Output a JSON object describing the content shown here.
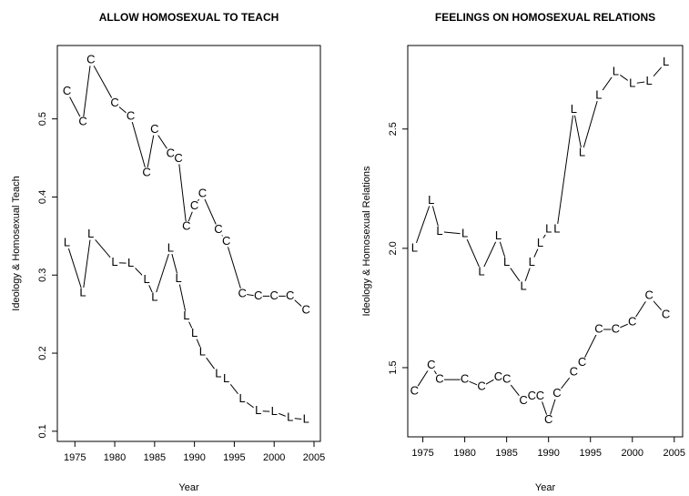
{
  "chart_data": [
    {
      "type": "line",
      "title": "ALLOW HOMOSEXUAL TO TEACH",
      "x_label": "Year",
      "y_label": "Ideology & Homosexual Teach",
      "x": [
        1974,
        1976,
        1977,
        1980,
        1982,
        1984,
        1985,
        1987,
        1988,
        1989,
        1990,
        1991,
        1993,
        1994,
        1996,
        1998,
        2000,
        2002,
        2004
      ],
      "series": [
        {
          "name": "C",
          "color": "#000000",
          "values": [
            0.535,
            0.496,
            0.575,
            0.52,
            0.503,
            0.431,
            0.486,
            0.455,
            0.449,
            0.362,
            0.388,
            0.404,
            0.358,
            0.343,
            0.276,
            0.273,
            0.273,
            0.273,
            0.255
          ]
        },
        {
          "name": "L",
          "color": "#000000",
          "values": [
            0.341,
            0.277,
            0.352,
            0.316,
            0.315,
            0.294,
            0.271,
            0.334,
            0.295,
            0.247,
            0.225,
            0.201,
            0.173,
            0.167,
            0.141,
            0.126,
            0.125,
            0.117,
            0.115
          ]
        }
      ],
      "xlim": [
        1972.8,
        2005.8
      ],
      "xticks": [
        1975,
        1980,
        1985,
        1990,
        1995,
        2000,
        2005
      ],
      "ylim": [
        0.087,
        0.594
      ],
      "yticks": [
        0.1,
        0.2,
        0.3,
        0.4,
        0.5
      ]
    },
    {
      "type": "line",
      "title": "FEELINGS ON HOMOSEXUAL RELATIONS",
      "x_label": "Year",
      "y_label": "Ideology & Homosexual Relations",
      "x": [
        1974,
        1976,
        1977,
        1980,
        1982,
        1984,
        1985,
        1987,
        1988,
        1989,
        1990,
        1991,
        1993,
        1994,
        1996,
        1998,
        2000,
        2002,
        2004
      ],
      "series": [
        {
          "name": "L",
          "color": "#000000",
          "values": [
            2.0,
            2.2,
            2.07,
            2.06,
            1.9,
            2.05,
            1.94,
            1.84,
            1.94,
            2.02,
            2.08,
            2.08,
            2.58,
            2.4,
            2.64,
            2.74,
            2.69,
            2.7,
            2.78
          ]
        },
        {
          "name": "C",
          "color": "#000000",
          "values": [
            1.4,
            1.51,
            1.45,
            1.45,
            1.42,
            1.46,
            1.45,
            1.36,
            1.38,
            1.38,
            1.28,
            1.39,
            1.48,
            1.52,
            1.66,
            1.66,
            1.69,
            1.8,
            1.72
          ]
        }
      ],
      "xlim": [
        1973.2,
        2006
      ],
      "xticks": [
        1975,
        1980,
        1985,
        1990,
        1995,
        2000,
        2005
      ],
      "ylim": [
        1.21,
        2.85
      ],
      "yticks": [
        {
          "value": 1.5,
          "label": "1.5"
        },
        {
          "value": 2,
          "label": "2.0"
        },
        {
          "value": 2.5,
          "label": "2.5"
        }
      ]
    }
  ]
}
